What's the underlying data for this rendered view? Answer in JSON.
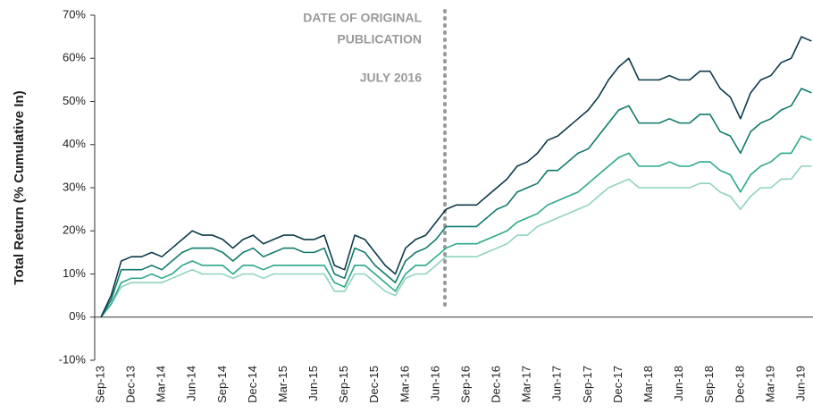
{
  "chart_data": {
    "type": "line",
    "y_label": "Total Return (% Cumulative In)",
    "annotations": [
      "DATE OF ORIGINAL",
      "PUBLICATION",
      "JULY 2016"
    ],
    "categories": [
      "Sep-13",
      null,
      null,
      "Dec-13",
      null,
      null,
      "Mar-14",
      null,
      null,
      "Jun-14",
      null,
      null,
      "Sep-14",
      null,
      null,
      "Dec-14",
      null,
      null,
      "Mar-15",
      null,
      null,
      "Jun-15",
      null,
      null,
      "Sep-15",
      null,
      null,
      "Dec-15",
      null,
      null,
      "Mar-16",
      null,
      null,
      "Jun-16",
      null,
      null,
      "Sep-16",
      null,
      null,
      "Dec-16",
      null,
      null,
      "Mar-17",
      null,
      null,
      "Jun-17",
      null,
      null,
      "Sep-17",
      null,
      null,
      "Dec-17",
      null,
      null,
      "Mar-18",
      null,
      null,
      "Jun-18",
      null,
      null,
      "Sep-18",
      null,
      null,
      "Dec-18",
      null,
      null,
      "Mar-19",
      null,
      null,
      "Jun-19",
      null
    ],
    "series": [
      {
        "color": "#0b3a4a",
        "values": [
          0,
          5,
          13,
          14,
          14,
          15,
          14,
          16,
          18,
          20,
          19,
          19,
          18,
          16,
          18,
          19,
          17,
          18,
          19,
          19,
          18,
          18,
          19,
          12,
          11,
          19,
          18,
          15,
          12,
          10,
          16,
          18,
          19,
          22,
          25,
          26,
          26,
          26,
          28,
          30,
          32,
          35,
          36,
          38,
          41,
          42,
          44,
          46,
          48,
          51,
          55,
          58,
          60,
          55,
          55,
          55,
          56,
          55,
          55,
          57,
          57,
          53,
          51,
          46,
          52,
          55,
          56,
          59,
          60,
          65,
          64
        ]
      },
      {
        "color": "#0f7a6a",
        "values": [
          0,
          4,
          11,
          11,
          11,
          12,
          11,
          13,
          15,
          16,
          16,
          16,
          15,
          13,
          15,
          16,
          14,
          15,
          16,
          16,
          15,
          15,
          16,
          10,
          9,
          16,
          15,
          12,
          10,
          8,
          13,
          15,
          16,
          18,
          21,
          21,
          21,
          21,
          23,
          25,
          26,
          29,
          30,
          31,
          34,
          34,
          36,
          38,
          39,
          42,
          45,
          48,
          49,
          45,
          45,
          45,
          46,
          45,
          45,
          47,
          47,
          43,
          42,
          38,
          43,
          45,
          46,
          48,
          49,
          53,
          52
        ]
      },
      {
        "color": "#2aa88a",
        "values": [
          0,
          3,
          8,
          9,
          9,
          10,
          9,
          10,
          12,
          13,
          12,
          12,
          12,
          10,
          12,
          12,
          11,
          12,
          12,
          12,
          12,
          12,
          12,
          8,
          7,
          12,
          12,
          10,
          8,
          6,
          10,
          12,
          12,
          14,
          16,
          17,
          17,
          17,
          18,
          19,
          20,
          22,
          23,
          24,
          26,
          27,
          28,
          29,
          31,
          33,
          35,
          37,
          38,
          35,
          35,
          35,
          36,
          35,
          35,
          36,
          36,
          34,
          33,
          29,
          33,
          35,
          36,
          38,
          38,
          42,
          41
        ]
      },
      {
        "color": "#8fd3bd",
        "values": [
          0,
          3,
          7,
          8,
          8,
          8,
          8,
          9,
          10,
          11,
          10,
          10,
          10,
          9,
          10,
          10,
          9,
          10,
          10,
          10,
          10,
          10,
          10,
          6,
          6,
          10,
          10,
          8,
          6,
          5,
          9,
          10,
          10,
          12,
          14,
          14,
          14,
          14,
          15,
          16,
          17,
          19,
          19,
          21,
          22,
          23,
          24,
          25,
          26,
          28,
          30,
          31,
          32,
          30,
          30,
          30,
          30,
          30,
          30,
          31,
          31,
          29,
          28,
          25,
          28,
          30,
          30,
          32,
          32,
          35,
          35
        ]
      }
    ],
    "ylim": [
      -10,
      70
    ],
    "yticks": [
      {
        "value": -10,
        "label": "-10%"
      },
      {
        "value": 0,
        "label": "0%"
      },
      {
        "value": 10,
        "label": "10%"
      },
      {
        "value": 20,
        "label": "20%"
      },
      {
        "value": 30,
        "label": "30%"
      },
      {
        "value": 40,
        "label": "40%"
      },
      {
        "value": 50,
        "label": "50%"
      },
      {
        "value": 60,
        "label": "60%"
      },
      {
        "value": 70,
        "label": "70%"
      }
    ],
    "grid": false
  }
}
